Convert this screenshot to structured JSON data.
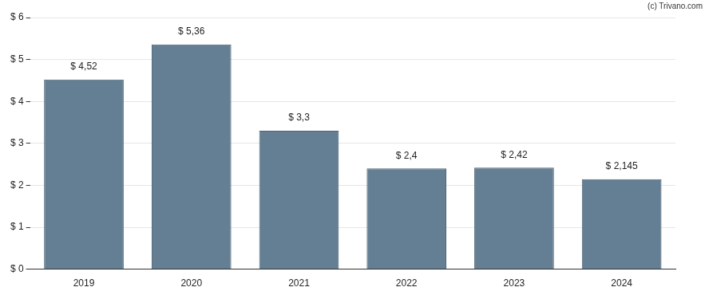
{
  "chart_data": {
    "type": "bar",
    "annotations": [
      "(c) Trivano.com"
    ],
    "categories": [
      "2019",
      "2020",
      "2021",
      "2022",
      "2023",
      "2024"
    ],
    "values": [
      4.52,
      5.36,
      3.3,
      2.4,
      2.42,
      2.145
    ],
    "value_labels": [
      "$ 4,52",
      "$ 5,36",
      "$ 3,3",
      "$ 2,4",
      "$ 2,42",
      "$ 2,145"
    ],
    "data_labels": true,
    "color": "#647f93",
    "ylim": [
      0,
      6
    ],
    "yticks": [
      {
        "value": 0,
        "label": "$ 0"
      },
      {
        "value": 1,
        "label": "$ 1"
      },
      {
        "value": 2,
        "label": "$ 2"
      },
      {
        "value": 3,
        "label": "$ 3"
      },
      {
        "value": 4,
        "label": "$ 4"
      },
      {
        "value": 5,
        "label": "$ 5"
      },
      {
        "value": 6,
        "label": "$ 6"
      }
    ],
    "grid": true
  }
}
